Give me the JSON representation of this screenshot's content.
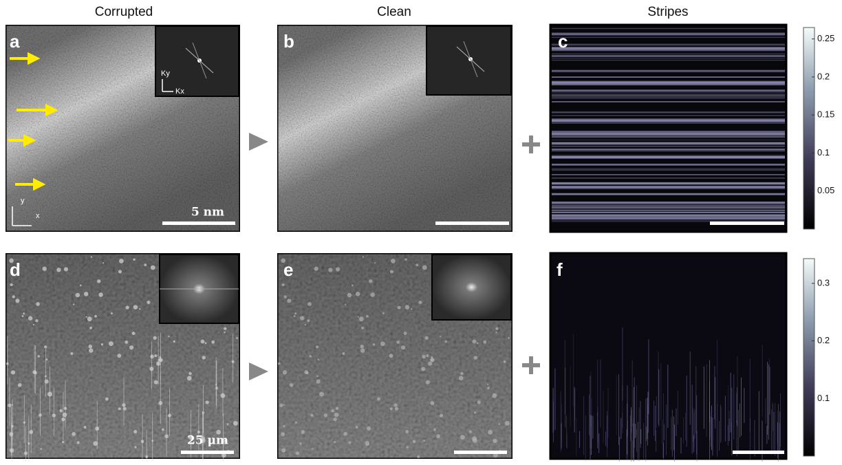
{
  "columns": [
    "Corrupted",
    "Clean",
    "Stripes"
  ],
  "rows": [
    {
      "panels": [
        "a",
        "b",
        "c"
      ],
      "scale_bar": "5 nm",
      "inset_axes": [
        "Ky",
        "Kx"
      ],
      "image_axes": [
        "y",
        "x"
      ],
      "colorbar": {
        "lim": [
          0,
          0.265
        ],
        "ticks": [
          0.05,
          0.1,
          0.15,
          0.2,
          0.25
        ]
      }
    },
    {
      "panels": [
        "d",
        "e",
        "f"
      ],
      "scale_bar": "25 μm",
      "colorbar": {
        "lim": [
          0,
          0.343
        ],
        "ticks": [
          0.1,
          0.2,
          0.3
        ]
      }
    }
  ]
}
